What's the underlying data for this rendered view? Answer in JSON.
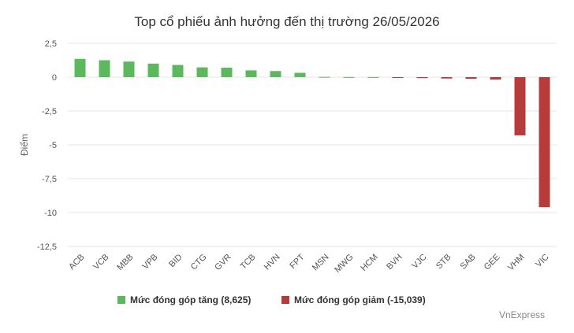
{
  "chart_data": {
    "type": "bar",
    "title": "Top cổ phiếu ảnh hưởng đến thị trường 26/05/2026",
    "ylabel": "Điểm",
    "xlabel": "",
    "ylim": [
      -12.5,
      2.5
    ],
    "yticks": [
      2.5,
      0,
      -2.5,
      -5,
      -7.5,
      -10,
      -12.5
    ],
    "ytick_labels": [
      "2,5",
      "0",
      "-2,5",
      "-5",
      "-7,5",
      "-10",
      "-12,5"
    ],
    "grid": true,
    "legend_position": "bottom",
    "categories": [
      "ACB",
      "VCB",
      "MBB",
      "VPB",
      "BID",
      "CTG",
      "GVR",
      "TCB",
      "HVN",
      "FPT",
      "MSN",
      "MWG",
      "HCM",
      "BVH",
      "VJC",
      "STB",
      "SAB",
      "GEE",
      "VHM",
      "VIC"
    ],
    "series": [
      {
        "name": "Mức đóng góp tăng (8,625)",
        "color": "#5cb85c",
        "values": [
          1.35,
          1.25,
          1.15,
          1.0,
          0.9,
          0.72,
          0.7,
          0.5,
          0.45,
          0.32,
          0.02,
          0.01,
          0.005,
          null,
          null,
          null,
          null,
          null,
          null,
          null
        ]
      },
      {
        "name": "Mức đóng góp giảm (-15,039)",
        "color": "#b83b3b",
        "values": [
          null,
          null,
          null,
          null,
          null,
          null,
          null,
          null,
          null,
          null,
          null,
          null,
          null,
          -0.05,
          -0.07,
          -0.1,
          -0.12,
          -0.18,
          -4.3,
          -9.6
        ]
      }
    ]
  },
  "credit": "VnExpress"
}
